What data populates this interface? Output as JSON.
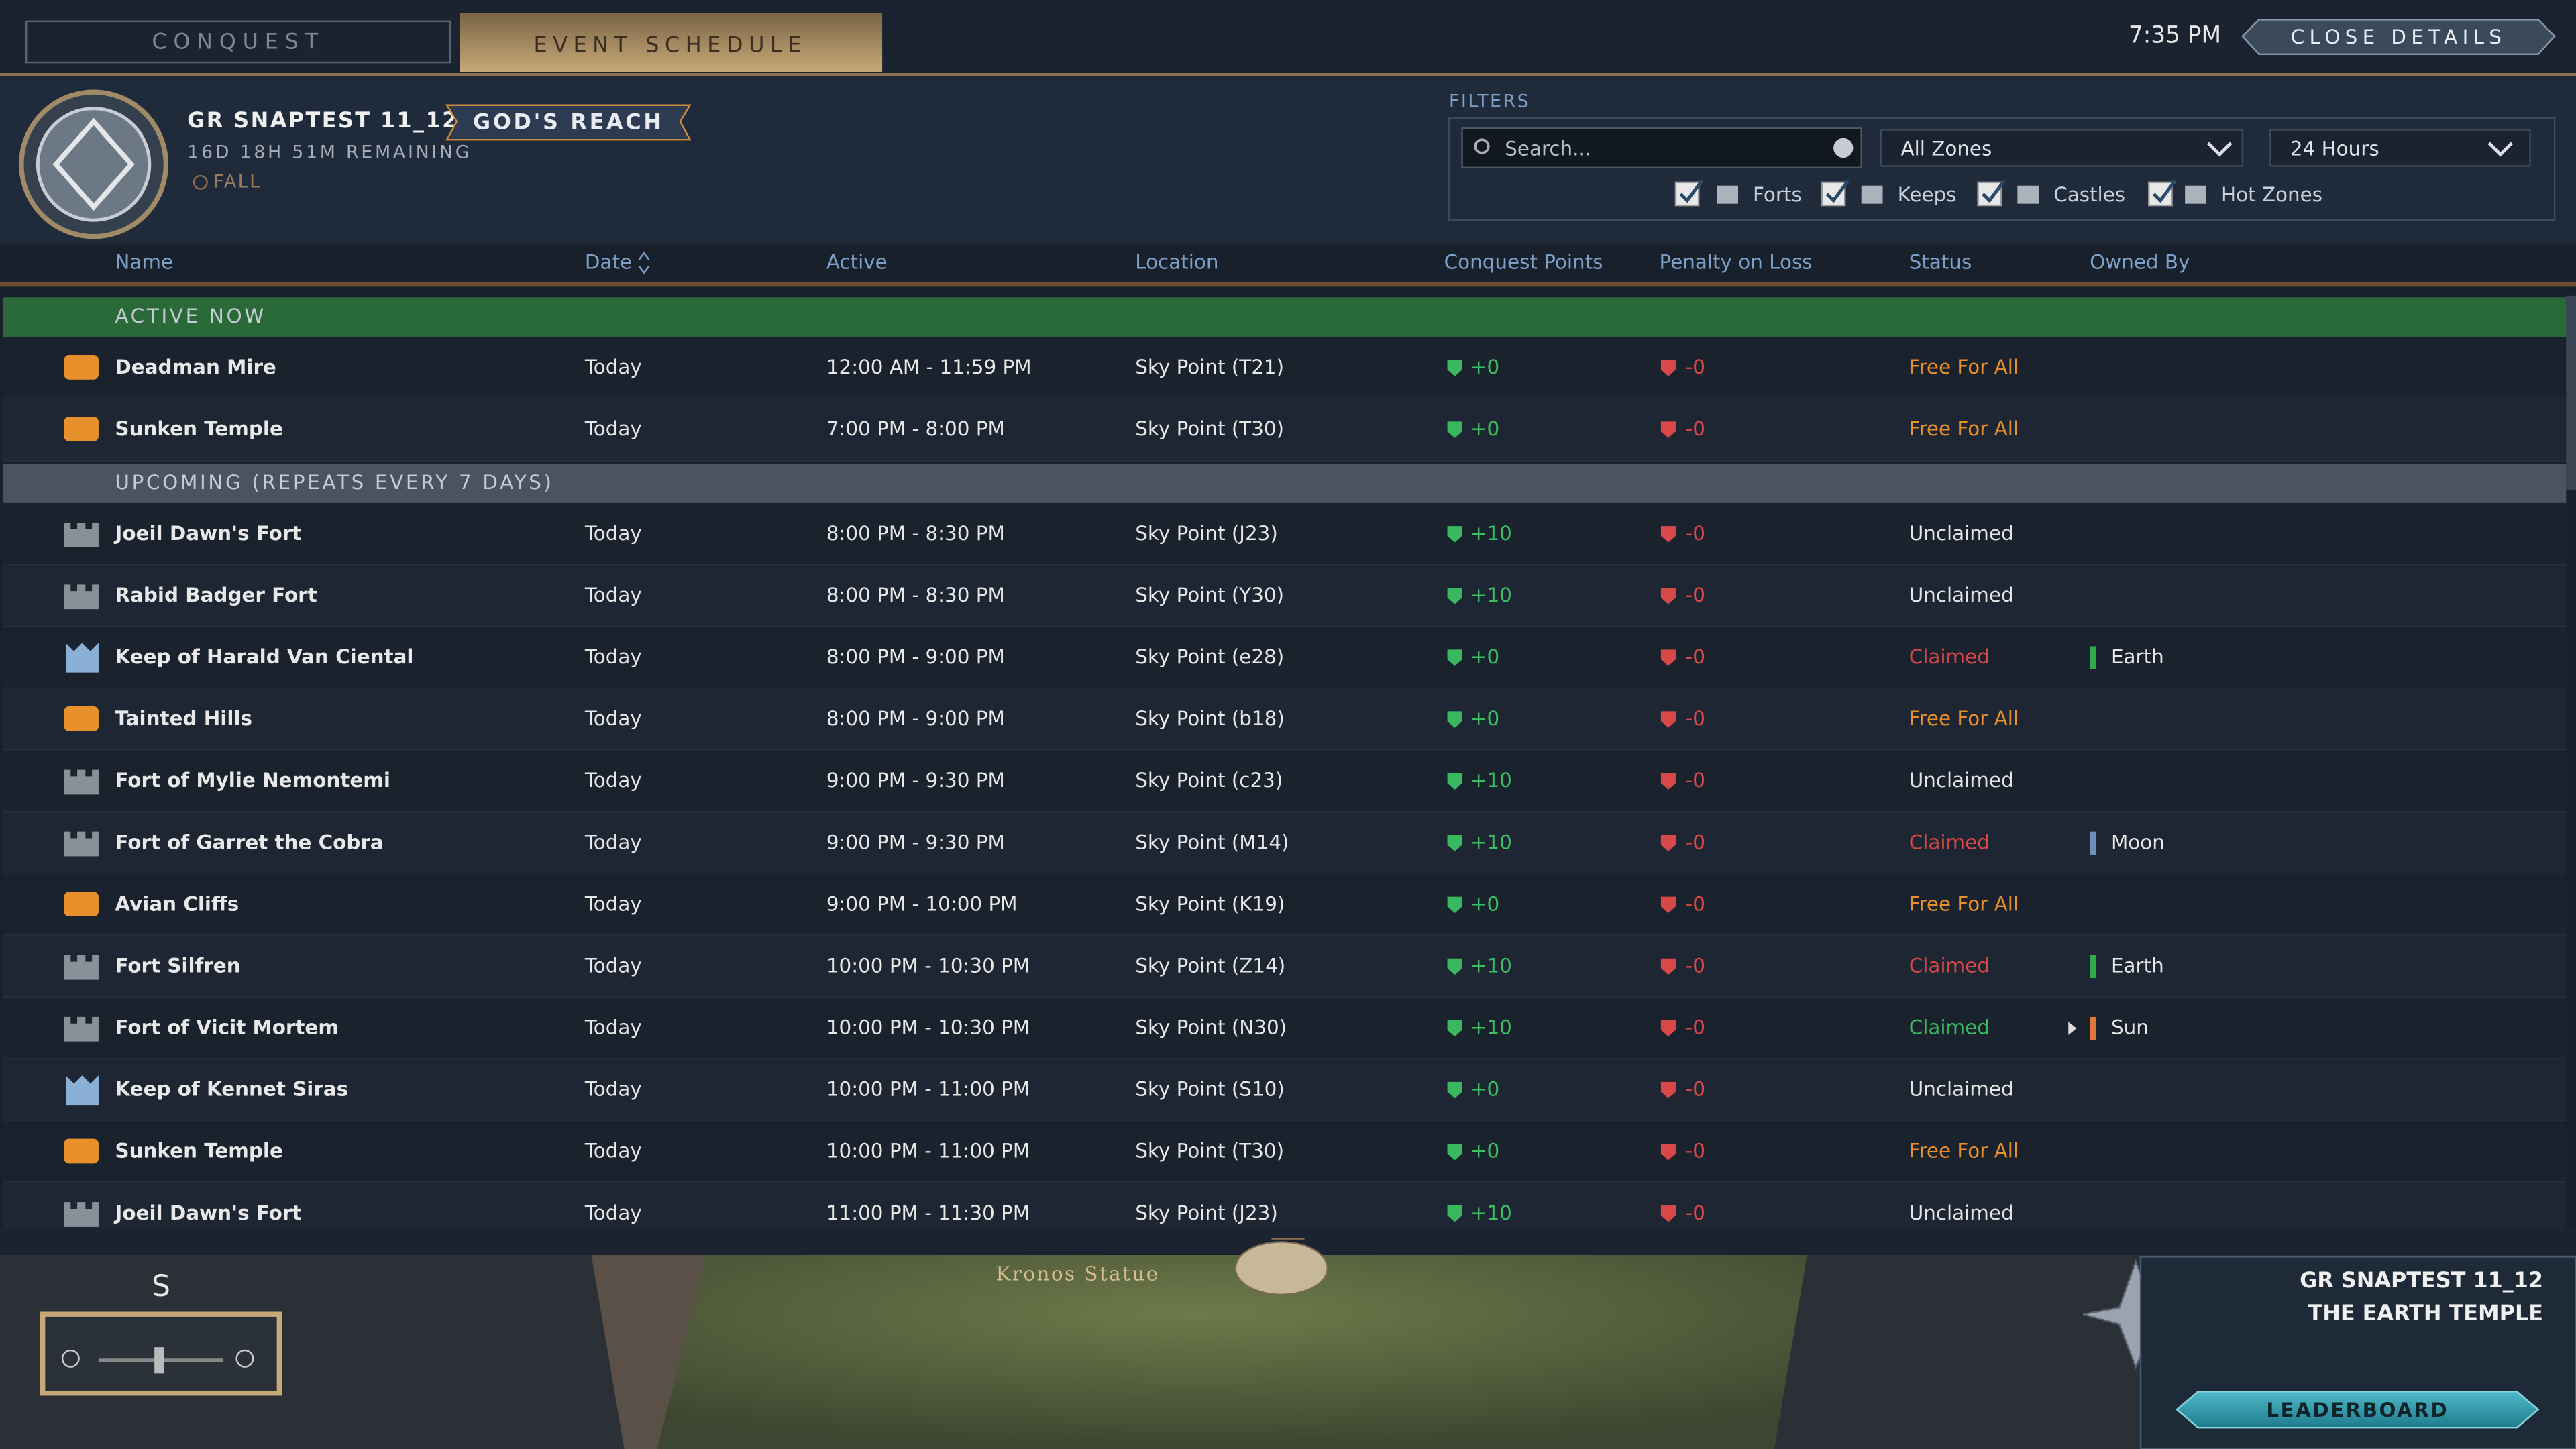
{
  "tabs": [
    "CONQUEST",
    "EVENT SCHEDULE"
  ],
  "clock": "7:35 PM",
  "close_button": "CLOSE DETAILS",
  "header": {
    "server": "GR SNAPTEST 11_12",
    "realm": "GOD'S REACH",
    "remaining": "16D 18H 51M REMAINING",
    "season": "FALL"
  },
  "filters": {
    "label": "FILTERS",
    "search_placeholder": "Search...",
    "zone": "All Zones",
    "period": "24 Hours",
    "checkboxes": [
      "Forts",
      "Keeps",
      "Castles",
      "Hot Zones"
    ]
  },
  "columns": [
    "Name",
    "Date",
    "Active",
    "Location",
    "Conquest Points",
    "Penalty on Loss",
    "Status",
    "Owned By"
  ],
  "sections": [
    {
      "title": "ACTIVE NOW",
      "rows": [
        [
          "Deadman Mire",
          "Today",
          "12:00 AM - 11:59 PM",
          "Sky Point (T21)",
          "+0",
          "-0",
          "Free For All",
          null
        ],
        [
          "Sunken Temple",
          "Today",
          "7:00 PM - 8:00 PM",
          "Sky Point (T30)",
          "+0",
          "-0",
          "Free For All",
          null
        ]
      ]
    },
    {
      "title": "UPCOMING (REPEATS EVERY 7 DAYS)",
      "rows": [
        [
          "Joeil Dawn's Fort",
          "Today",
          "8:00 PM - 8:30 PM",
          "Sky Point (J23)",
          "+10",
          "-0",
          "Unclaimed",
          null
        ],
        [
          "Rabid Badger Fort",
          "Today",
          "8:00 PM - 8:30 PM",
          "Sky Point (Y30)",
          "+10",
          "-0",
          "Unclaimed",
          null
        ],
        [
          "Keep of Harald Van Ciental",
          "Today",
          "8:00 PM - 9:00 PM",
          "Sky Point (e28)",
          "+0",
          "-0",
          "Claimed",
          "Earth"
        ],
        [
          "Tainted Hills",
          "Today",
          "8:00 PM - 9:00 PM",
          "Sky Point (b18)",
          "+0",
          "-0",
          "Free For All",
          null
        ],
        [
          "Fort of Mylie Nemontemi",
          "Today",
          "9:00 PM - 9:30 PM",
          "Sky Point (c23)",
          "+10",
          "-0",
          "Unclaimed",
          null
        ],
        [
          "Fort of Garret the Cobra",
          "Today",
          "9:00 PM - 9:30 PM",
          "Sky Point (M14)",
          "+10",
          "-0",
          "Claimed",
          "Moon"
        ],
        [
          "Avian Cliffs",
          "Today",
          "9:00 PM - 10:00 PM",
          "Sky Point (K19)",
          "+0",
          "-0",
          "Free For All",
          null
        ],
        [
          "Fort Silfren",
          "Today",
          "10:00 PM - 10:30 PM",
          "Sky Point (Z14)",
          "+10",
          "-0",
          "Claimed",
          "Earth"
        ],
        [
          "Fort of Vicit Mortem",
          "Today",
          "10:00 PM - 10:30 PM",
          "Sky Point (N30)",
          "+10",
          "-0",
          "Claimed",
          "Sun"
        ],
        [
          "Keep of Kennet Siras",
          "Today",
          "10:00 PM - 11:00 PM",
          "Sky Point (S10)",
          "+0",
          "-0",
          "Unclaimed",
          null
        ],
        [
          "Sunken Temple",
          "Today",
          "10:00 PM - 11:00 PM",
          "Sky Point (T30)",
          "+0",
          "-0",
          "Free For All",
          null
        ],
        [
          "Joeil Dawn's Fort",
          "Today",
          "11:00 PM - 11:30 PM",
          "Sky Point (J23)",
          "+10",
          "-0",
          "Unclaimed",
          null
        ]
      ]
    }
  ],
  "map": {
    "landmark": "Kronos Statue",
    "compass": "S",
    "panel_server": "GR SNAPTEST 11_12",
    "panel_location": "THE EARTH TEMPLE",
    "leaderboard": "LEADERBOARD"
  }
}
